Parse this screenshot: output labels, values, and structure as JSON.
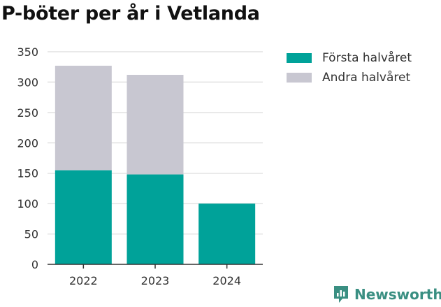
{
  "chart_data": {
    "type": "bar",
    "stacked": true,
    "title": "P-böter per år i Vetlanda",
    "categories": [
      "2022",
      "2023",
      "2024"
    ],
    "series": [
      {
        "name": "Första halvåret",
        "values": [
          155,
          148,
          100
        ],
        "color": "#00a299"
      },
      {
        "name": "Andra halvåret",
        "values": [
          172,
          164,
          0
        ],
        "color": "#c8c7d1"
      }
    ],
    "ylim": [
      0,
      350
    ],
    "yticks": [
      0,
      50,
      100,
      150,
      200,
      250,
      300,
      350
    ],
    "grid": true,
    "legend": "right"
  },
  "branding": {
    "name": "Newsworthy",
    "icon": "newsworthy-logo-icon",
    "color": "#3a8f82"
  }
}
